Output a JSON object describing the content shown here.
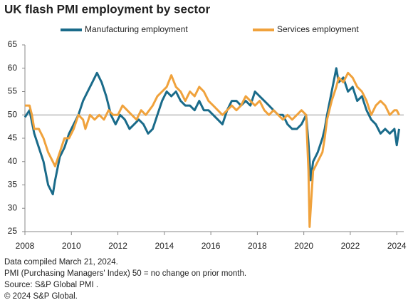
{
  "chart_data": {
    "type": "line",
    "title": "UK flash PMI employment by sector",
    "xlim": [
      2008,
      2024.3
    ],
    "xticks": [
      2008,
      2010,
      2012,
      2014,
      2016,
      2018,
      2020,
      2022,
      2024
    ],
    "ylim": [
      25,
      65
    ],
    "yticks": [
      25,
      30,
      35,
      40,
      45,
      50,
      55,
      60,
      65
    ],
    "reference_line": 50,
    "reference_color": "#999999",
    "legend": "top",
    "series": [
      {
        "name": "Manufacturing employment",
        "color": "#1a6b8a",
        "x": [
          2008.0,
          2008.2,
          2008.4,
          2008.6,
          2008.8,
          2009.0,
          2009.2,
          2009.3,
          2009.5,
          2009.7,
          2009.9,
          2010.1,
          2010.3,
          2010.5,
          2010.7,
          2010.9,
          2011.1,
          2011.3,
          2011.5,
          2011.7,
          2011.9,
          2012.1,
          2012.3,
          2012.5,
          2012.7,
          2012.9,
          2013.1,
          2013.3,
          2013.5,
          2013.7,
          2013.9,
          2014.1,
          2014.3,
          2014.5,
          2014.7,
          2014.9,
          2015.1,
          2015.3,
          2015.5,
          2015.7,
          2015.9,
          2016.1,
          2016.3,
          2016.5,
          2016.7,
          2016.9,
          2017.1,
          2017.3,
          2017.5,
          2017.7,
          2017.9,
          2018.1,
          2018.3,
          2018.5,
          2018.7,
          2018.9,
          2019.1,
          2019.3,
          2019.5,
          2019.7,
          2019.9,
          2020.1,
          2020.2,
          2020.3,
          2020.4,
          2020.6,
          2020.8,
          2020.9,
          2021.0,
          2021.2,
          2021.4,
          2021.5,
          2021.7,
          2021.9,
          2022.1,
          2022.3,
          2022.5,
          2022.7,
          2022.9,
          2023.1,
          2023.3,
          2023.5,
          2023.7,
          2023.9,
          2024.0,
          2024.1
        ],
        "values": [
          49.5,
          51,
          46,
          43,
          40,
          35,
          33,
          36,
          41,
          43,
          46,
          48,
          50,
          53,
          55,
          57,
          59,
          57,
          54,
          50,
          48,
          50,
          49,
          47,
          48,
          49,
          48,
          46,
          47,
          50,
          53,
          55,
          54,
          55,
          53,
          52,
          52,
          51,
          53,
          51,
          51,
          50,
          49,
          48,
          51,
          53,
          53,
          52,
          53,
          52,
          55,
          54,
          53,
          52,
          51,
          50,
          50,
          48,
          47,
          47,
          48,
          50,
          44,
          36,
          40,
          42,
          45,
          47,
          50,
          55,
          60,
          57,
          58,
          55,
          56,
          53,
          54,
          51,
          49,
          48,
          46,
          47,
          46,
          47,
          43.5,
          47
        ]
      },
      {
        "name": "Services employment",
        "color": "#f0a23c",
        "x": [
          2008.0,
          2008.2,
          2008.3,
          2008.4,
          2008.6,
          2008.8,
          2009.0,
          2009.2,
          2009.3,
          2009.5,
          2009.7,
          2009.9,
          2010.1,
          2010.3,
          2010.5,
          2010.6,
          2010.8,
          2011.0,
          2011.2,
          2011.4,
          2011.6,
          2011.8,
          2012.0,
          2012.2,
          2012.4,
          2012.6,
          2012.8,
          2013.0,
          2013.2,
          2013.5,
          2013.7,
          2013.9,
          2014.1,
          2014.3,
          2014.5,
          2014.7,
          2014.9,
          2015.1,
          2015.3,
          2015.5,
          2015.7,
          2015.9,
          2016.1,
          2016.3,
          2016.5,
          2016.7,
          2016.9,
          2017.1,
          2017.3,
          2017.5,
          2017.7,
          2017.9,
          2018.1,
          2018.3,
          2018.5,
          2018.7,
          2018.9,
          2019.1,
          2019.3,
          2019.5,
          2019.7,
          2019.9,
          2020.1,
          2020.2,
          2020.25,
          2020.3,
          2020.4,
          2020.6,
          2020.8,
          2020.9,
          2021.0,
          2021.2,
          2021.4,
          2021.5,
          2021.7,
          2021.9,
          2022.1,
          2022.3,
          2022.5,
          2022.7,
          2022.9,
          2023.1,
          2023.3,
          2023.5,
          2023.7,
          2023.9,
          2024.0,
          2024.1
        ],
        "values": [
          52,
          52,
          50,
          47,
          47,
          45,
          42,
          40,
          39,
          42,
          45,
          45,
          47,
          50,
          49,
          47,
          50,
          49,
          50,
          49,
          51,
          50,
          50,
          52,
          51,
          50,
          49,
          51,
          50,
          52,
          54,
          55,
          56,
          58.5,
          56,
          55,
          53,
          55,
          54,
          56,
          55,
          53,
          52,
          51,
          50,
          51,
          52,
          51,
          52,
          54,
          53,
          52,
          53,
          51,
          50,
          51,
          50,
          49,
          50,
          49,
          50,
          51,
          50,
          38,
          26,
          30,
          38,
          40,
          42,
          45,
          49,
          53,
          56,
          58,
          57,
          59,
          58,
          56,
          55,
          53,
          50,
          52,
          53,
          52,
          50,
          51,
          51,
          50
        ]
      }
    ],
    "notes": [
      "Data compiled March 21, 2024.",
      "PMI (Purchasing Managers' Index) 50 = no change on prior month.",
      "Source: S&P Global PMI .",
      "© 2024 S&P Global."
    ]
  }
}
